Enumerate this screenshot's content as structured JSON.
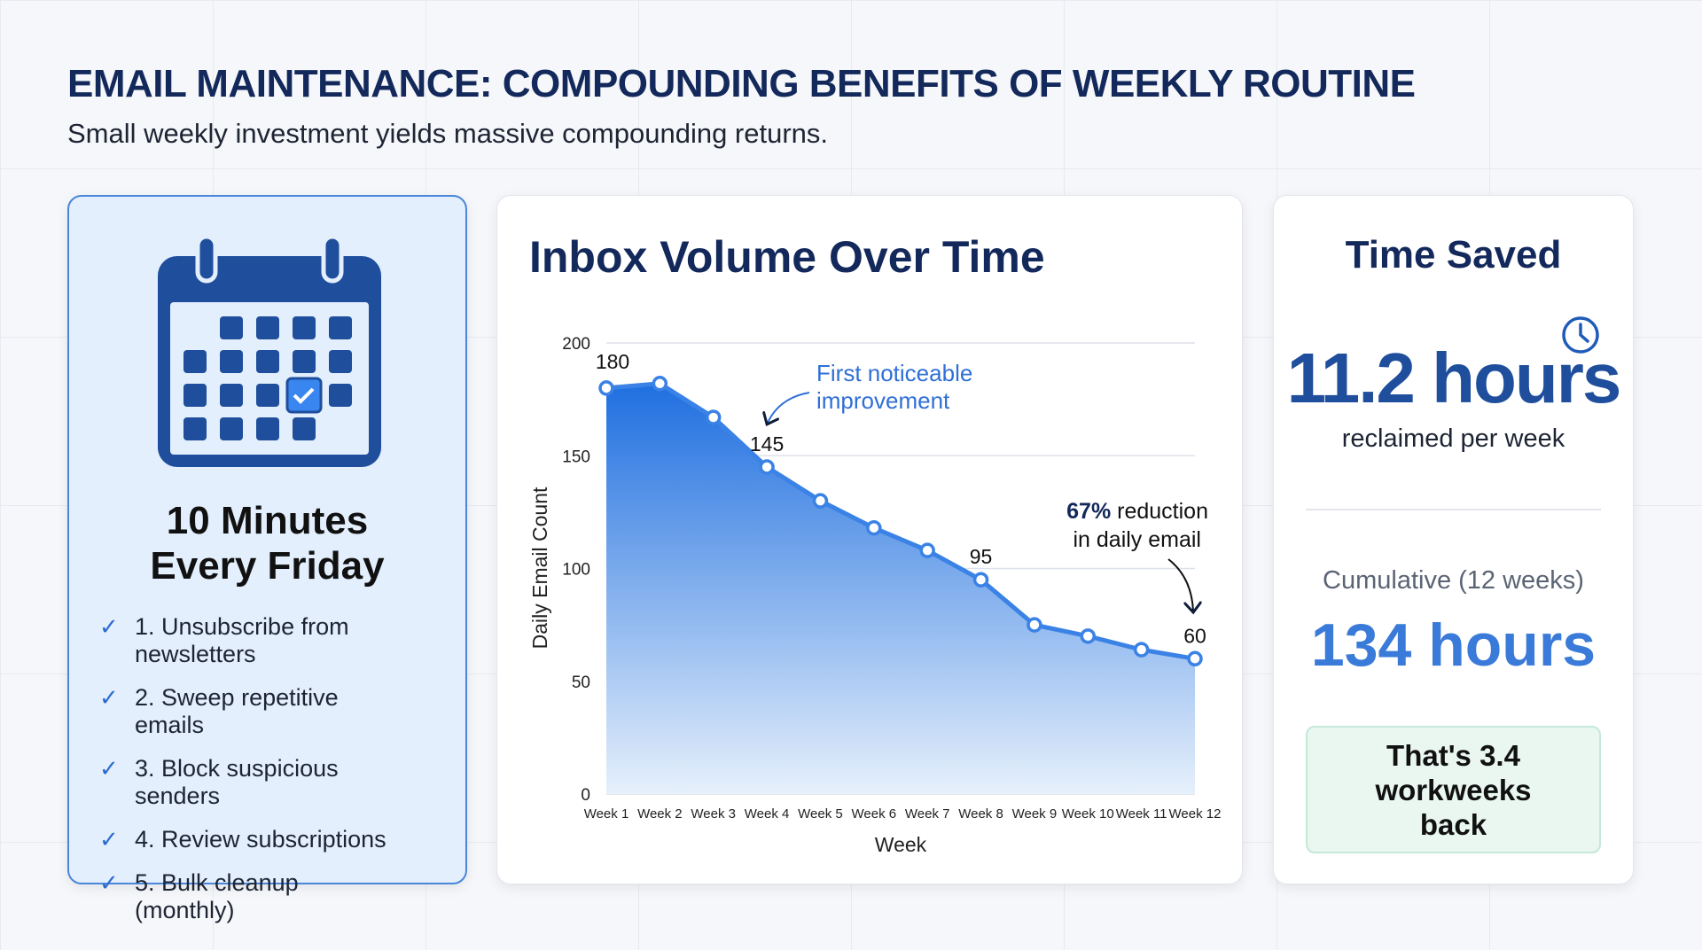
{
  "header": {
    "title": "EMAIL MAINTENANCE: COMPOUNDING BENEFITS OF WEEKLY ROUTINE",
    "subtitle": "Small weekly investment yields massive compounding returns."
  },
  "routine": {
    "icon": "calendar-check-icon",
    "heading_line1": "10 Minutes",
    "heading_line2": "Every Friday",
    "items": [
      "1. Unsubscribe from newsletters",
      "2. Sweep repetitive emails",
      "3. Block suspicious senders",
      "4. Review subscriptions",
      "5. Bulk cleanup (monthly)"
    ]
  },
  "chart_data": {
    "type": "area",
    "title": "Inbox Volume Over Time",
    "xlabel": "Week",
    "ylabel": "Daily Email Count",
    "categories": [
      "Week 1",
      "Week 2",
      "Week 3",
      "Week 4",
      "Week 5",
      "Week 6",
      "Week 7",
      "Week 8",
      "Week 9",
      "Week 10",
      "Week 11",
      "Week 12"
    ],
    "values": [
      180,
      182,
      167,
      145,
      130,
      118,
      108,
      95,
      75,
      70,
      64,
      60
    ],
    "ylim": [
      0,
      200
    ],
    "yticks": [
      0,
      50,
      100,
      150,
      200
    ],
    "grid": true,
    "data_labels": [
      {
        "index": 0,
        "text": "180"
      },
      {
        "index": 3,
        "text": "145"
      },
      {
        "index": 7,
        "text": "95"
      },
      {
        "index": 11,
        "text": "60"
      }
    ],
    "annotations": {
      "first": "First noticeable improvement",
      "first_l1": "First noticeable",
      "first_l2": "improvement",
      "reduction_bold": "67%",
      "reduction_l1": " reduction",
      "reduction_l2": "in daily email"
    },
    "colors": {
      "line": "#3b82e6",
      "fill_top": "#1f6fe0",
      "fill_bottom": "#e6f0fb"
    }
  },
  "time_saved": {
    "title": "Time Saved",
    "icon": "clock-icon",
    "weekly_value": "11.2 hours",
    "weekly_label": "reclaimed per week",
    "cumulative_label": "Cumulative (12 weeks)",
    "cumulative_value": "134 hours",
    "callout": "That's 3.4 workweeks back"
  }
}
